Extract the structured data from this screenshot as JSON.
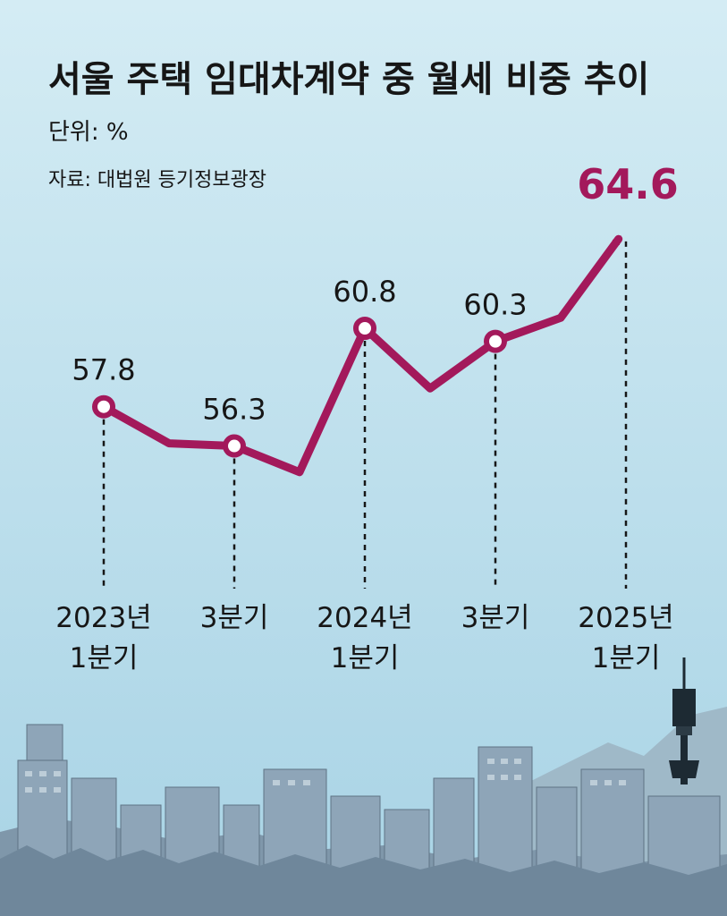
{
  "chart_data": {
    "type": "line",
    "title": "서울 주택 임대차계약 중 월세 비중 추이",
    "unit": "단위: %",
    "source": "자료: 대법원 등기정보광장",
    "x_labels": [
      {
        "index": 0,
        "lines": [
          "2023년",
          "1분기"
        ]
      },
      {
        "index": 2,
        "lines": [
          "3분기"
        ]
      },
      {
        "index": 4,
        "lines": [
          "2024년",
          "1분기"
        ]
      },
      {
        "index": 6,
        "lines": [
          "3분기"
        ]
      },
      {
        "index": 8,
        "lines": [
          "2025년",
          "1분기"
        ]
      }
    ],
    "series": [
      {
        "values": [
          57.8,
          56.4,
          56.3,
          55.3,
          60.8,
          58.5,
          60.3,
          61.2,
          64.6
        ],
        "labels": [
          "57.8",
          null,
          "56.3",
          null,
          "60.8",
          null,
          "60.3",
          null,
          "64.6"
        ],
        "markers": [
          true,
          false,
          true,
          false,
          true,
          false,
          true,
          false,
          false
        ]
      }
    ],
    "highlight": {
      "index": 8,
      "label": "64.6"
    },
    "ylim": [
      53,
      66
    ],
    "grid": false,
    "legend": "none"
  },
  "colors": {
    "line": "#a3195b",
    "highlight": "#a3195b",
    "sky_top": "#d4ecf4",
    "sky_bottom": "#a8d3e5",
    "text": "#161616",
    "buildings": "#8aa3b6"
  }
}
